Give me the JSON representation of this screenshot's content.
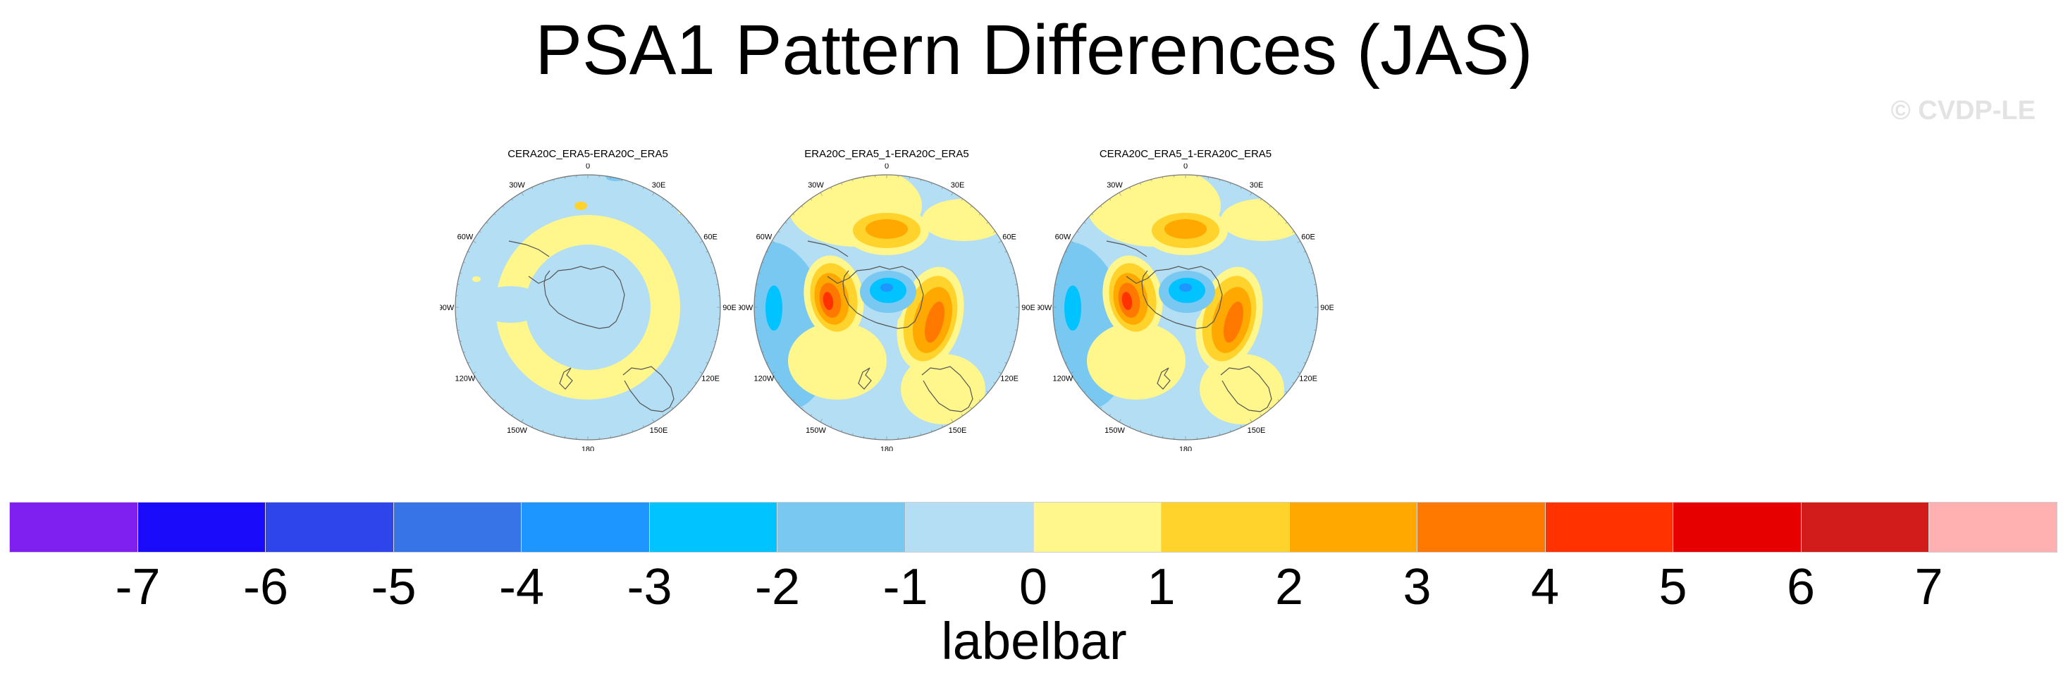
{
  "title": "PSA1 Pattern Differences (JAS)",
  "watermark": "© CVDP-LE",
  "longitude_labels": [
    "0",
    "30E",
    "60E",
    "90E",
    "120E",
    "150E",
    "180",
    "150W",
    "120W",
    "90W",
    "60W",
    "30W"
  ],
  "panels": [
    {
      "title": "CERA20C_ERA5-ERA20C_ERA5",
      "pattern": "weak"
    },
    {
      "title": "ERA20C_ERA5_1-ERA20C_ERA5",
      "pattern": "strong"
    },
    {
      "title": "CERA20C_ERA5_1-ERA20C_ERA5",
      "pattern": "strong"
    }
  ],
  "labelbar": {
    "title": "labelbar",
    "ticks": [
      "-7",
      "-6",
      "-5",
      "-4",
      "-3",
      "-2",
      "-1",
      "0",
      "1",
      "2",
      "3",
      "4",
      "5",
      "6",
      "7"
    ],
    "colors": [
      "#8020f0",
      "#1a0cfa",
      "#2d45ea",
      "#3674e8",
      "#1e96ff",
      "#00c3ff",
      "#78c8f2",
      "#b3def4",
      "#fff68c",
      "#ffd32c",
      "#ffa800",
      "#ff7800",
      "#ff3200",
      "#e60000",
      "#d21c1c",
      "#ffb0b0"
    ]
  }
}
